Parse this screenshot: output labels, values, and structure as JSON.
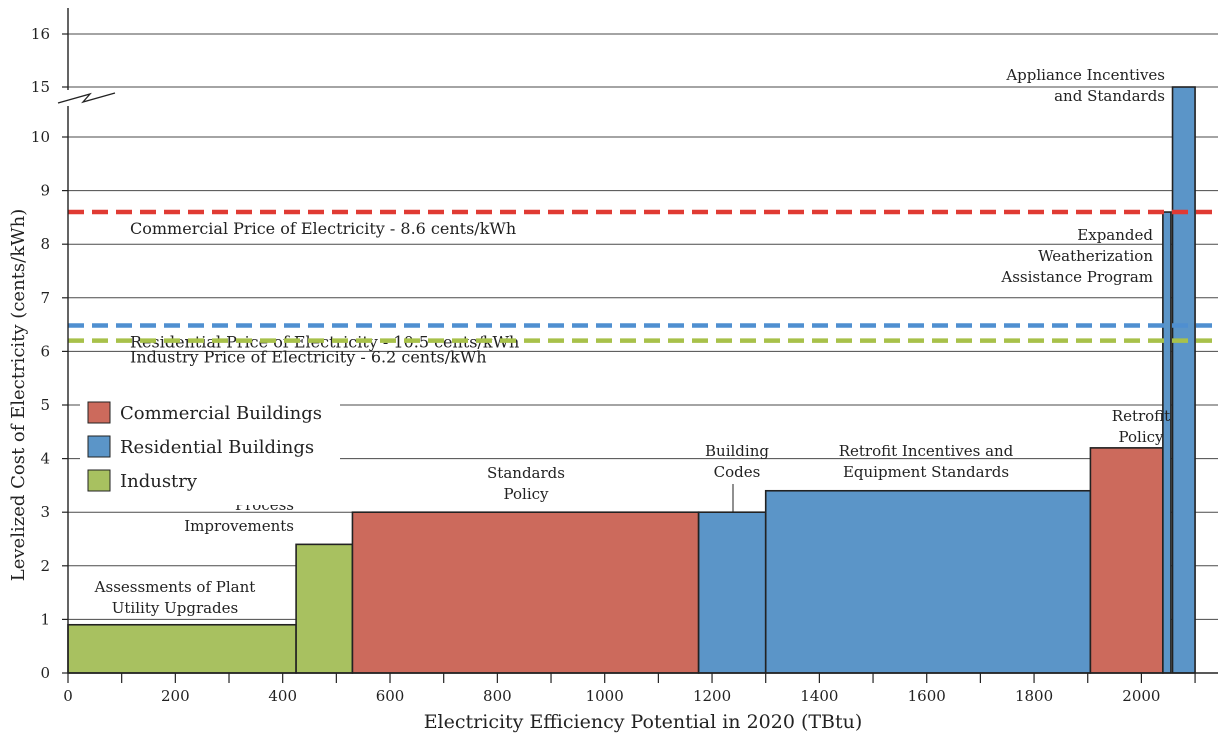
{
  "chart_data": {
    "type": "bar",
    "title": "",
    "xlabel": "Electricity Efficiency Potential in 2020 (TBtu)",
    "ylabel": "Levelized Cost of Electricity (cents/kWh)",
    "xlim": [
      0,
      2100
    ],
    "ylim": [
      0,
      16
    ],
    "axis_break_between": [
      10,
      15
    ],
    "x_ticks": [
      0,
      200,
      400,
      600,
      800,
      1000,
      1200,
      1400,
      1600,
      1800,
      2000
    ],
    "x_tick_labels": [
      "0",
      "200",
      "400",
      "600",
      "800",
      "1000",
      "1200",
      "1400",
      "1600",
      "1800",
      "2000"
    ],
    "y_ticks": [
      0,
      1,
      2,
      3,
      4,
      5,
      6,
      7,
      8,
      9,
      10,
      15,
      16
    ],
    "y_tick_labels": [
      "0",
      "1",
      "2",
      "3",
      "4",
      "5",
      "6",
      "7",
      "8",
      "9",
      "10",
      "15",
      "16"
    ],
    "grid": true,
    "legend_position": "left-middle",
    "legend": [
      {
        "name": "Commercial Buildings",
        "color": "#cc6a5c"
      },
      {
        "name": "Residential Buildings",
        "color": "#5b95c8"
      },
      {
        "name": "Industry",
        "color": "#a8c160"
      }
    ],
    "blocks": [
      {
        "label": "Assessments of Plant Utility Upgrades",
        "category": "Industry",
        "x_start": 0,
        "x_end": 425,
        "value": 0.9
      },
      {
        "label": "Process Improvements",
        "category": "Industry",
        "x_start": 425,
        "x_end": 530,
        "value": 2.4
      },
      {
        "label": "Standards Policy",
        "category": "Commercial Buildings",
        "x_start": 530,
        "x_end": 1175,
        "value": 3.0
      },
      {
        "label": "Building Codes",
        "category": "Residential Buildings",
        "x_start": 1175,
        "x_end": 1300,
        "value": 3.0
      },
      {
        "label": "Retrofit Incentives and Equipment Standards",
        "category": "Residential Buildings",
        "x_start": 1300,
        "x_end": 1905,
        "value": 3.4
      },
      {
        "label": "Retrofit Policy",
        "category": "Commercial Buildings",
        "x_start": 1905,
        "x_end": 2040,
        "value": 4.2
      },
      {
        "label": "Expanded Weatherization Assistance Program",
        "category": "Residential Buildings",
        "x_start": 2040,
        "x_end": 2055,
        "value": 8.6
      },
      {
        "label": "Appliance Incentives and Standards",
        "category": "Residential Buildings",
        "x_start": 2058,
        "x_end": 2100,
        "value": 15.0
      }
    ],
    "reference_lines": [
      {
        "label": "Residential Price of Electricity - 10.5 cents/kWh",
        "value": 10.5,
        "color": "#4f8fd0"
      },
      {
        "label": "Commercial Price of Electricity - 8.6 cents/kWh",
        "value": 8.6,
        "color": "#e03a33"
      },
      {
        "label": "Industry Price of Electricity - 6.2 cents/kWh",
        "value": 6.2,
        "color": "#a8c14a"
      }
    ]
  }
}
